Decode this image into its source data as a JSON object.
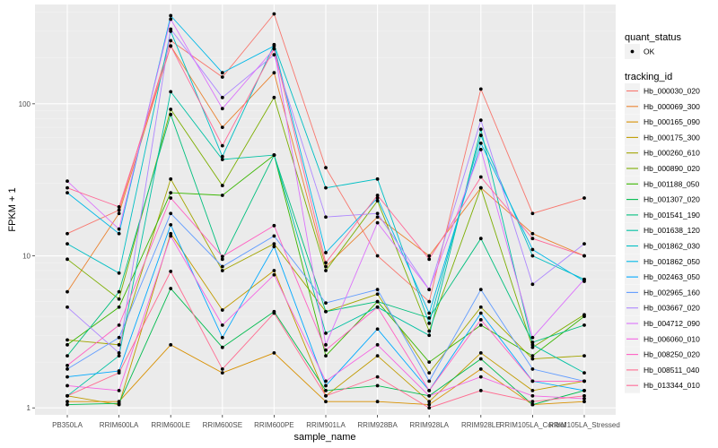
{
  "chart_data": {
    "type": "line",
    "xlabel": "sample_name",
    "ylabel": "FPKM + 1",
    "y_scale": "log10",
    "ylim": [
      0.9,
      450
    ],
    "y_ticks": [
      {
        "value": 1,
        "label": "1"
      },
      {
        "value": 10,
        "label": "10"
      },
      {
        "value": 100,
        "label": "100"
      }
    ],
    "grid": true,
    "legend_position": "right",
    "categories": [
      "PB350LA",
      "RRIM600LA",
      "RRIM600LE",
      "RRIM600SE",
      "RRIM600PE",
      "RRIM901LA",
      "RRIM928BA",
      "RRIM928LA",
      "RRIM928LE",
      "RRIM105LA_Control",
      "RRIM105LA_Stressed"
    ],
    "point_legend": {
      "title": "quant_status",
      "entries": [
        "OK"
      ]
    },
    "series_legend_title": "tracking_id",
    "series": [
      {
        "name": "Hb_000030_020",
        "color": "#F8766D",
        "values": [
          14,
          20,
          260,
          150,
          390,
          38,
          10,
          5,
          125,
          19,
          24
        ]
      },
      {
        "name": "Hb_000069_300",
        "color": "#EA8331",
        "values": [
          5.8,
          19,
          240,
          70,
          160,
          8.5,
          18,
          10,
          28,
          14,
          10
        ]
      },
      {
        "name": "Hb_000165_090",
        "color": "#D89000",
        "values": [
          1.1,
          1.1,
          2.6,
          1.7,
          2.3,
          1.1,
          1.1,
          1.05,
          1.8,
          1.05,
          1.1
        ]
      },
      {
        "name": "Hb_000175_300",
        "color": "#C09B00",
        "values": [
          1.2,
          1.05,
          14,
          4.4,
          8,
          1.2,
          2.2,
          1.1,
          2.3,
          1.3,
          1.5
        ]
      },
      {
        "name": "Hb_000260_610",
        "color": "#A3A500",
        "values": [
          2.8,
          2.6,
          32,
          8,
          12,
          4.3,
          5.6,
          1.7,
          4.6,
          2.1,
          2.2
        ]
      },
      {
        "name": "Hb_000890_020",
        "color": "#7CAE00",
        "values": [
          9.5,
          5.2,
          92,
          29,
          110,
          8,
          23,
          3.2,
          28,
          2.5,
          4.1
        ]
      },
      {
        "name": "Hb_001188_050",
        "color": "#39B600",
        "values": [
          2.6,
          4.6,
          26,
          25,
          46,
          2.2,
          5,
          2,
          3.5,
          2.2,
          4
        ]
      },
      {
        "name": "Hb_001307_020",
        "color": "#00BB4E",
        "values": [
          1.05,
          1.07,
          6.1,
          2.5,
          4.3,
          1.3,
          1.4,
          1.2,
          2.1,
          1.05,
          1.3
        ]
      },
      {
        "name": "Hb_001541_190",
        "color": "#00BF7D",
        "values": [
          2.2,
          5.8,
          85,
          9.5,
          46,
          4.3,
          5,
          3.9,
          13,
          2.7,
          3.5
        ]
      },
      {
        "name": "Hb_001638_120",
        "color": "#00C1A3",
        "values": [
          1.2,
          2.2,
          120,
          43,
          46,
          3.1,
          4.6,
          3,
          68,
          2.6,
          1.7
        ]
      },
      {
        "name": "Hb_001862_030",
        "color": "#00BFC4",
        "values": [
          12,
          7.7,
          300,
          45,
          245,
          28,
          32,
          3.6,
          62,
          10,
          7
        ]
      },
      {
        "name": "Hb_001862_050",
        "color": "#00B8E7",
        "values": [
          26,
          14,
          380,
          160,
          240,
          10.5,
          24,
          4.2,
          55,
          11,
          6.8
        ]
      },
      {
        "name": "Hb_002463_050",
        "color": "#00A9FF",
        "values": [
          1.6,
          1.75,
          16,
          2.9,
          11.5,
          1.4,
          3.3,
          1.3,
          4.2,
          1.5,
          1.3
        ]
      },
      {
        "name": "Hb_002965_160",
        "color": "#619CFF",
        "values": [
          1.8,
          2.9,
          19,
          8.5,
          13.5,
          4.9,
          6,
          1.5,
          6,
          1.8,
          1.5
        ]
      },
      {
        "name": "Hb_003667_020",
        "color": "#AE87FF",
        "values": [
          4.6,
          2.3,
          310,
          110,
          210,
          18,
          19,
          6,
          78,
          6.5,
          12
        ]
      },
      {
        "name": "Hb_004712_090",
        "color": "#DB72FB",
        "values": [
          31,
          15,
          360,
          93,
          230,
          2.6,
          16.5,
          6,
          50,
          2.9,
          7
        ]
      },
      {
        "name": "Hb_006060_010",
        "color": "#F564E3",
        "values": [
          1.4,
          1.3,
          13.5,
          3.5,
          7.5,
          1.5,
          2.6,
          1.2,
          1.6,
          1.2,
          1.15
        ]
      },
      {
        "name": "Hb_008250_020",
        "color": "#FF61C3",
        "values": [
          1.9,
          3.5,
          24,
          9.9,
          15.8,
          2.4,
          4.6,
          1.3,
          3.8,
          1.5,
          1.5
        ]
      },
      {
        "name": "Hb_008511_040",
        "color": "#FF6C91",
        "values": [
          1.2,
          1.7,
          7.9,
          1.8,
          4.2,
          1.2,
          1.6,
          1,
          1.3,
          1.1,
          1.2
        ]
      },
      {
        "name": "Hb_013344_010",
        "color": "#FF6A98",
        "values": [
          28,
          21,
          240,
          53,
          230,
          9,
          25,
          9.5,
          33,
          13,
          10
        ]
      }
    ]
  }
}
